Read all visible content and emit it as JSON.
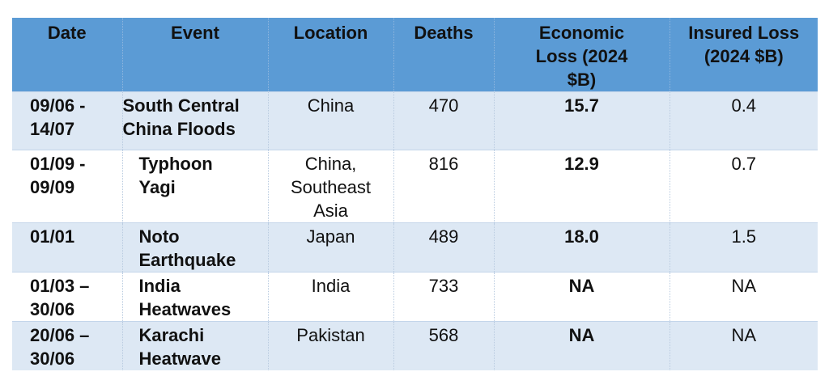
{
  "table": {
    "headers": [
      "Date",
      "Event",
      "Location",
      "Deaths",
      "Economic Loss (2024 $B)",
      "Insured Loss (2024 $B)"
    ],
    "rows": [
      {
        "date": "09/06 - 14/07",
        "event": "South Central China Floods",
        "location": "China",
        "deaths": "470",
        "economic_loss": "15.7",
        "insured_loss": "0.4"
      },
      {
        "date": "01/09 - 09/09",
        "event": "Typhoon Yagi",
        "location": "China, Southeast Asia",
        "deaths": "816",
        "economic_loss": "12.9",
        "insured_loss": "0.7"
      },
      {
        "date": "01/01",
        "event": "Noto Earthquake",
        "location": "Japan",
        "deaths": "489",
        "economic_loss": "18.0",
        "insured_loss": "1.5"
      },
      {
        "date": "01/03 – 30/06",
        "event": "India Heatwaves",
        "location": "India",
        "deaths": "733",
        "economic_loss": "NA",
        "insured_loss": "NA"
      },
      {
        "date": "20/06 – 30/06",
        "event": "Karachi Heatwave",
        "location": "Pakistan",
        "deaths": "568",
        "economic_loss": "NA",
        "insured_loss": "NA"
      }
    ]
  },
  "colors": {
    "header_bg": "#5b9bd5",
    "band_bg": "#dde8f4",
    "text": "#111111"
  }
}
